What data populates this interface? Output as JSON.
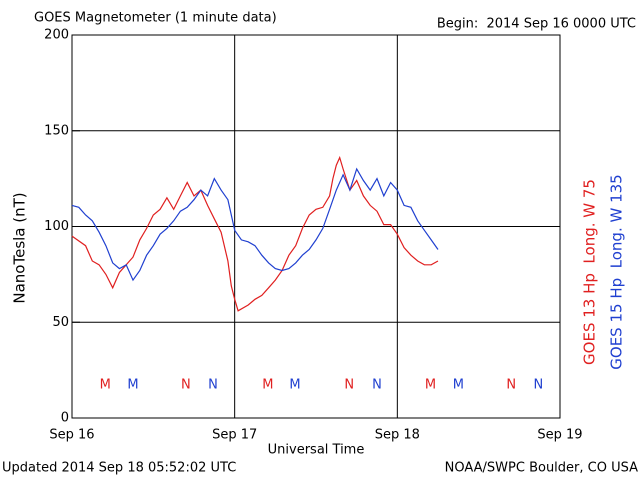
{
  "chart_data": {
    "type": "line",
    "title": "GOES Magnetometer (1 minute data)",
    "begin": "Begin:  2014 Sep 16 0000 UTC",
    "ylabel": "NanoTesla (nT)",
    "xlabel": "Universal Time",
    "updated": "Updated 2014 Sep 18 05:52:02 UTC",
    "source": "NOAA/SWPC Boulder, CO USA",
    "xlim": [
      0,
      72
    ],
    "xticks": [
      {
        "value": 0,
        "label": "Sep 16"
      },
      {
        "value": 24,
        "label": "Sep 17"
      },
      {
        "value": 48,
        "label": "Sep 18"
      },
      {
        "value": 72,
        "label": "Sep 19"
      }
    ],
    "ylim": [
      0,
      200
    ],
    "yticks": [
      0,
      50,
      100,
      150,
      200
    ],
    "grid": true,
    "series": [
      {
        "name": "GOES 13 Hp  Long. W 75",
        "color": "#e02020",
        "x": [
          0,
          2,
          3,
          4,
          5,
          6,
          7,
          8,
          9,
          10,
          11,
          12,
          13,
          14,
          15,
          16,
          17,
          18,
          19,
          20,
          21,
          22,
          23,
          23.5,
          24,
          24.5,
          26,
          27,
          28,
          29,
          30,
          31,
          32,
          33,
          34,
          35,
          36,
          37,
          38,
          38.5,
          39,
          39.5,
          40,
          41,
          42,
          43,
          44,
          45,
          46,
          47,
          48,
          49,
          50,
          51,
          52,
          53,
          54
        ],
        "values": [
          95,
          90,
          82,
          80,
          75,
          68,
          76,
          80,
          84,
          93,
          99,
          106,
          109,
          115,
          109,
          116,
          123,
          116,
          119,
          111,
          104,
          97,
          82,
          69,
          62,
          56,
          59,
          62,
          64,
          68,
          72,
          77,
          85,
          90,
          99,
          106,
          109,
          110,
          116,
          125,
          132,
          136,
          130,
          119,
          124,
          116,
          111,
          108,
          101,
          101,
          96,
          89,
          85,
          82,
          80,
          80,
          82
        ],
        "markers": [
          {
            "label": "M",
            "x": 4.9
          },
          {
            "label": "N",
            "x": 16.8
          },
          {
            "label": "M",
            "x": 28.9
          },
          {
            "label": "N",
            "x": 40.9
          },
          {
            "label": "M",
            "x": 52.9
          },
          {
            "label": "N",
            "x": 64.8
          }
        ]
      },
      {
        "name": "GOES 15 Hp  Long. W 135",
        "color": "#2040d0",
        "x": [
          0,
          1,
          2,
          3,
          4,
          5,
          6,
          7,
          8,
          9,
          10,
          11,
          12,
          13,
          14,
          15,
          16,
          17,
          18,
          19,
          20,
          21,
          22,
          23,
          24,
          25,
          26,
          27,
          28,
          29,
          30,
          31,
          32,
          33,
          34,
          35,
          36,
          37,
          38,
          39,
          40,
          41,
          42,
          43,
          44,
          45,
          46,
          47,
          48,
          49,
          50,
          51,
          52,
          53,
          54
        ],
        "values": [
          111,
          110,
          106,
          103,
          97,
          90,
          81,
          78,
          80,
          72,
          77,
          85,
          90,
          96,
          99,
          103,
          108,
          110,
          114,
          119,
          116,
          125,
          119,
          114,
          98,
          93,
          92,
          90,
          85,
          81,
          78,
          77,
          78,
          81,
          85,
          88,
          93,
          99,
          109,
          119,
          127,
          119,
          130,
          124,
          119,
          125,
          116,
          123,
          119,
          111,
          110,
          103,
          98,
          93,
          88
        ],
        "markers": [
          {
            "label": "M",
            "x": 9
          },
          {
            "label": "N",
            "x": 20.8
          },
          {
            "label": "M",
            "x": 32.9
          },
          {
            "label": "N",
            "x": 45
          },
          {
            "label": "M",
            "x": 57
          },
          {
            "label": "N",
            "x": 68.8
          }
        ]
      }
    ]
  }
}
